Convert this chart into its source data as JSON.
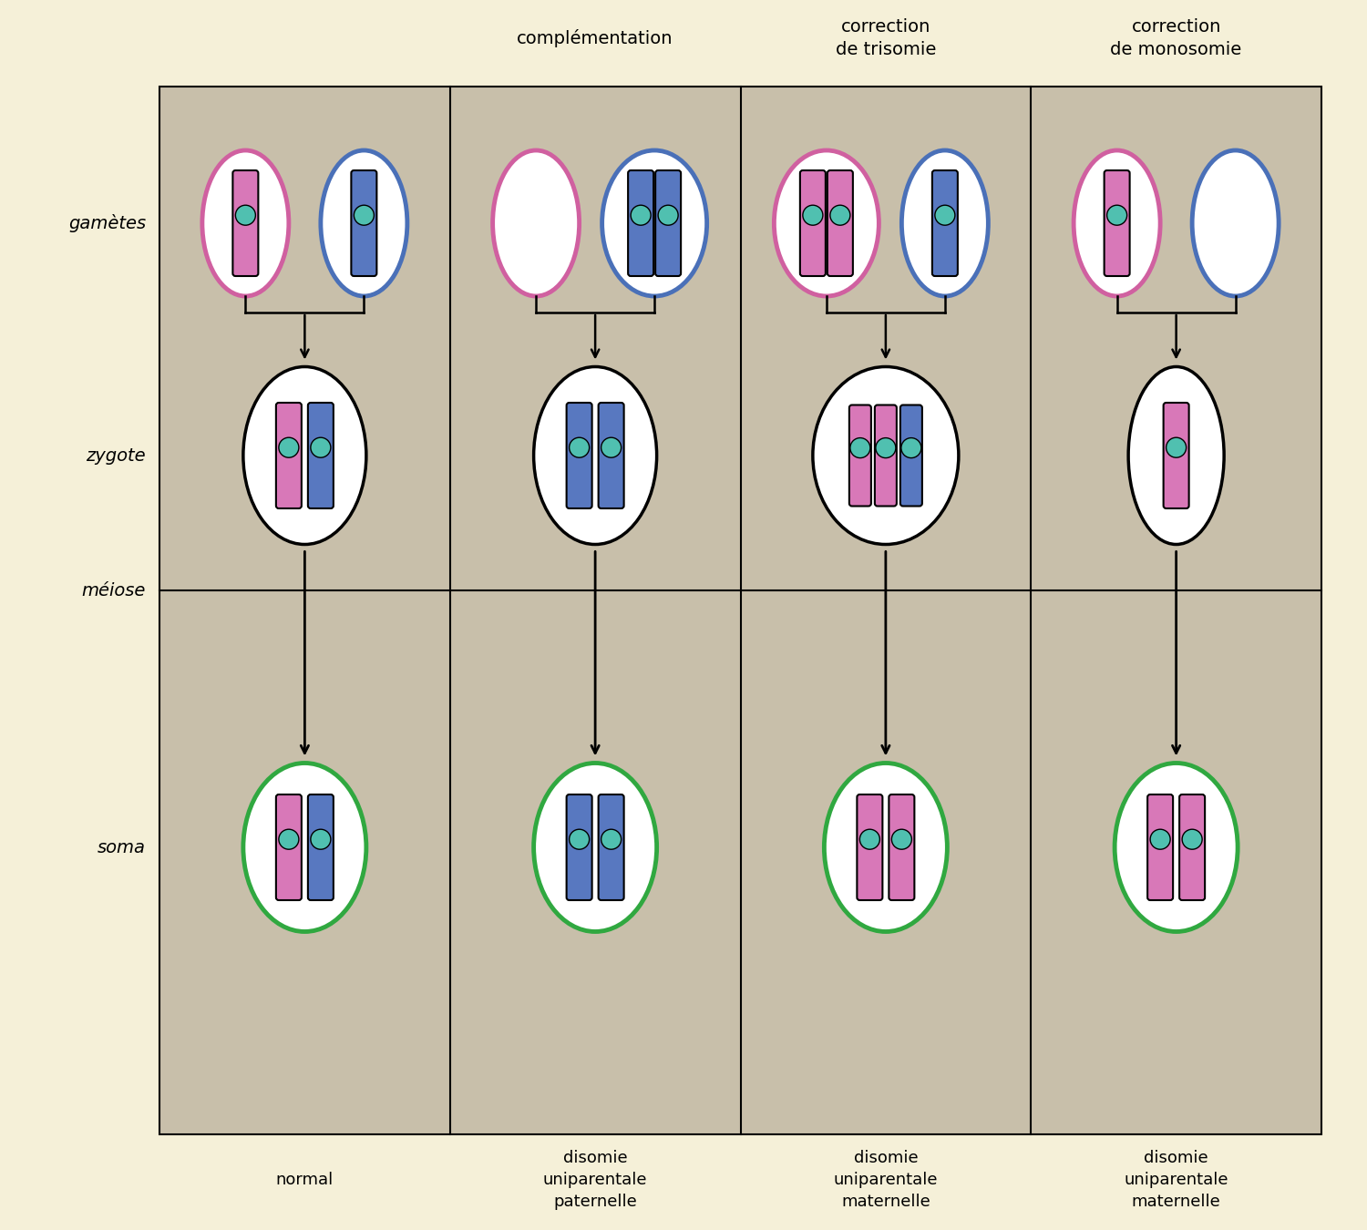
{
  "background_outer": "#f5f0d8",
  "background_inner": "#c8bfaa",
  "pink_color": "#d060a0",
  "blue_color": "#4a70b8",
  "green_color": "#30a840",
  "teal_color": "#50c0b0",
  "chrom_pink": "#d878b8",
  "chrom_blue": "#5878c0",
  "row_labels": [
    "gamètes",
    "zygote",
    "soma"
  ],
  "col_labels": [
    "normal",
    "disomie\nuniparentale\npaternelle",
    "disomie\nuniparentale\nmaternelle",
    "disomie\nuniparentale\nmaternelle"
  ],
  "col_headers": [
    "",
    "complémentation",
    "correction\nde trisomie",
    "correction\nde monosomie"
  ],
  "meiose_label": "méiose",
  "font_size_labels": 14,
  "font_size_col_headers": 14,
  "font_size_bottom": 13
}
